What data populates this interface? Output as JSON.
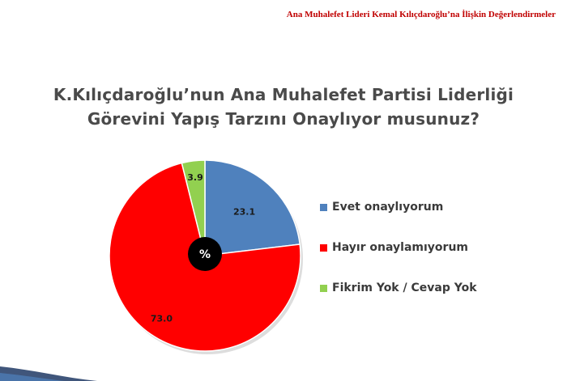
{
  "header": {
    "note": "Ana Muhalefet Lideri Kemal Kılıçdaroğlu’na İlişkin Değerlendirmeler"
  },
  "chart_data": {
    "type": "pie",
    "title_lines": [
      "K.Kılıçdaroğlu’nun Ana Muhalefet Partisi Liderliği",
      "Görevini Yapış Tarzını Onaylıyor musunuz?"
    ],
    "center_label": "%",
    "legend_position": "right",
    "slices": [
      {
        "label": "Evet onaylıyorum",
        "value": 23.1,
        "value_label": "23.1",
        "color": "#4f81bd"
      },
      {
        "label": "Hayır onaylamıyorum",
        "value": 73.0,
        "value_label": "73.0",
        "color": "#ff0000"
      },
      {
        "label": "Fikrim Yok / Cevap Yok",
        "value": 3.9,
        "value_label": "3.9",
        "color": "#92d050"
      }
    ]
  },
  "colors": {
    "header_note": "#c00000",
    "title": "#4a4a4a",
    "center_badge": "#000000"
  }
}
